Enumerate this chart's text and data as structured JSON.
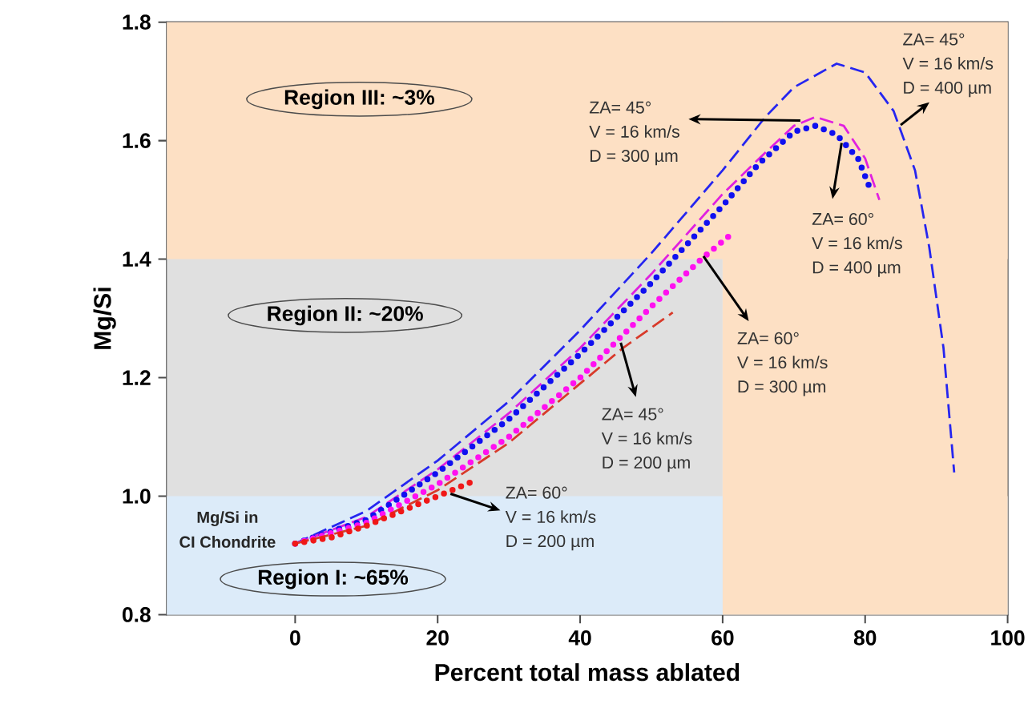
{
  "chart_data": {
    "type": "line",
    "xlabel": "Percent total mass ablated",
    "ylabel": "Mg/Si",
    "xlim": [
      -18,
      100
    ],
    "xticks": [
      0,
      20,
      40,
      60,
      80,
      100
    ],
    "ylim": [
      0.8,
      1.8
    ],
    "yticks": [
      {
        "value": 0.8,
        "label": "0.8"
      },
      {
        "value": 1.0,
        "label": "1.0"
      },
      {
        "value": 1.2,
        "label": "1.2"
      },
      {
        "value": 1.4,
        "label": "1.4"
      },
      {
        "value": 1.6,
        "label": "1.6"
      },
      {
        "value": 1.8,
        "label": "1.8"
      }
    ],
    "bands": [
      {
        "axis": "x",
        "from": -18,
        "to": 60,
        "color": "#e0e0e0"
      },
      {
        "axis": "y",
        "from": 0.8,
        "to": 1.0,
        "color": "#dcebf9"
      },
      {
        "axis": "x",
        "from": 60,
        "to": 100,
        "color": "#fde0c4"
      },
      {
        "axis": "y",
        "from": 1.4,
        "to": 1.8,
        "color": "#fde0c4"
      }
    ],
    "series": [
      {
        "color": "#2525f0",
        "line_style": "dashed",
        "x": [
          0,
          10,
          20,
          30,
          40,
          50,
          60,
          66,
          70,
          76,
          80,
          84,
          87,
          89,
          91,
          92.5
        ],
        "values": [
          0.92,
          0.975,
          1.06,
          1.16,
          1.28,
          1.41,
          1.55,
          1.64,
          1.69,
          1.73,
          1.715,
          1.65,
          1.55,
          1.42,
          1.25,
          1.04
        ]
      },
      {
        "color": "#e020e0",
        "line_style": "dashed",
        "x": [
          0,
          10,
          20,
          30,
          40,
          50,
          60,
          66,
          70,
          73,
          77,
          80,
          82
        ],
        "values": [
          0.92,
          0.965,
          1.045,
          1.14,
          1.25,
          1.375,
          1.51,
          1.58,
          1.625,
          1.64,
          1.625,
          1.57,
          1.5
        ]
      },
      {
        "color": "#1010f0",
        "line_style": "dotted",
        "x": [
          0,
          10,
          20,
          30,
          40,
          50,
          60,
          65,
          70,
          73,
          76,
          79,
          80.5
        ],
        "values": [
          0.92,
          0.96,
          1.04,
          1.13,
          1.24,
          1.36,
          1.49,
          1.56,
          1.615,
          1.625,
          1.61,
          1.57,
          1.525
        ]
      },
      {
        "color": "#ff10f0",
        "line_style": "dotted",
        "x": [
          0,
          10,
          20,
          30,
          40,
          50,
          57,
          61
        ],
        "values": [
          0.92,
          0.955,
          1.02,
          1.1,
          1.2,
          1.32,
          1.4,
          1.44
        ]
      },
      {
        "color": "#d83a2a",
        "line_style": "dashed",
        "x": [
          0,
          10,
          20,
          30,
          40,
          46,
          53
        ],
        "values": [
          0.92,
          0.95,
          1.01,
          1.09,
          1.19,
          1.25,
          1.31
        ]
      },
      {
        "color": "#f01818",
        "line_style": "dotted",
        "x": [
          0,
          5,
          10,
          15,
          20,
          25
        ],
        "values": [
          0.92,
          0.93,
          0.95,
          0.975,
          1.0,
          1.025
        ]
      }
    ],
    "annotations": [
      "Region III: ~3%",
      "Region II: ~20%",
      "Region I: ~65%",
      "Mg/Si in",
      "CI Chondrite",
      "ZA= 45°",
      "V = 16 km/s",
      "D = 400 µm",
      "ZA= 45°",
      "V = 16 km/s",
      "D = 300 µm",
      {
        "text": "ZA= 60°",
        "x": 76.7,
        "y": 1.596
      },
      "V = 16 km/s",
      "D = 400 µm",
      {
        "text": "ZA= 60°",
        "x": 57.3,
        "y": 1.405
      },
      "V = 16 km/s",
      "D = 300 µm",
      {
        "text": "ZA= 45°",
        "x": 45.7,
        "y": 1.259
      },
      "V = 16 km/s",
      "D = 200 µm",
      {
        "text": "ZA= 60°",
        "x": 21.8,
        "y": 1.004
      },
      "V = 16 km/s",
      "D = 200 µm"
    ]
  }
}
